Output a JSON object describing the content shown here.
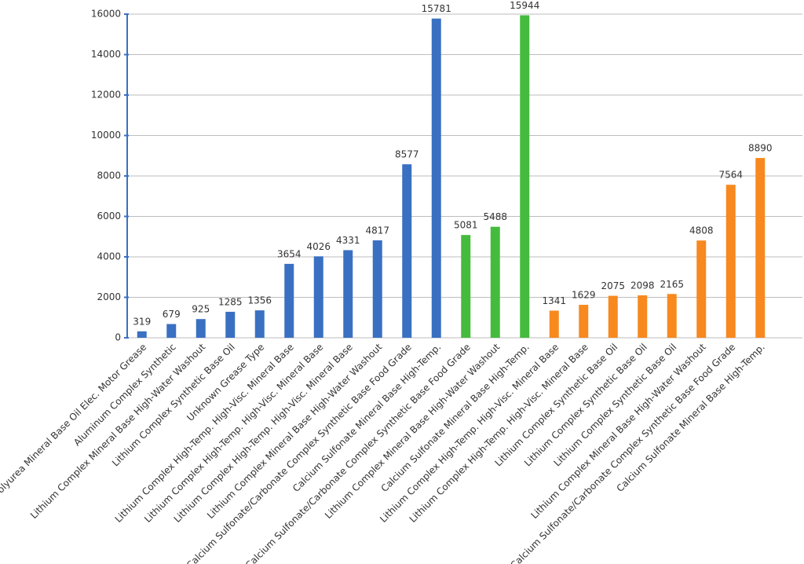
{
  "chart_data": {
    "type": "bar",
    "categories": [
      "Polyurea Mineral Base Oil Elec. Motor Grease",
      "Aluminum Complex Synthetic",
      "Lithium Complex Mineral Base High-Water Washout",
      "Lithium Complex Synthetic Base Oil",
      "Unknown Grease Type",
      "Lithium Complex High-Temp. High-Visc. Mineral Base",
      "Lithium Complex High-Temp. High-Visc. Mineral Base",
      "Lithium Complex High-Temp. High-Visc. Mineral Base",
      "Lithium Complex Mineral Base High-Water Washout",
      "Calcium Sulfonate/Carbonate Complex Synthetic Base Food Grade",
      "Calcium Sulfonate Mineral Base High-Temp.",
      "Calcium Sulfonate/Carbonate Complex Synthetic Base Food Grade",
      "Lithium Complex Mineral Base High-Water Washout",
      "Calcium Sulfonate Mineral Base High-Temp.",
      "Lithium Complex High-Temp. High-Visc. Mineral Base",
      "Lithium Complex High-Temp. High-Visc. Mineral Base",
      "Lithium Complex Synthetic Base Oil",
      "Lithium Complex Synthetic Base Oil",
      "Lithium Complex Synthetic Base Oil",
      "Lithium Complex Mineral Base High-Water Washout",
      "Calcium Sulfonate/Carbonate Complex Synthetic Base Food Grade",
      "Calcium Sulfonate Mineral Base High-Temp."
    ],
    "values": [
      319,
      679,
      925,
      1285,
      1356,
      3654,
      4026,
      4331,
      4817,
      8577,
      15781,
      5081,
      5488,
      15944,
      1341,
      1629,
      2075,
      2098,
      2165,
      4808,
      7564,
      8890
    ],
    "colors": [
      "#3a70c2",
      "#3a70c2",
      "#3a70c2",
      "#3a70c2",
      "#3a70c2",
      "#3a70c2",
      "#3a70c2",
      "#3a70c2",
      "#3a70c2",
      "#3a70c2",
      "#3a70c2",
      "#45bb3e",
      "#45bb3e",
      "#45bb3e",
      "#f7891f",
      "#f7891f",
      "#f7891f",
      "#f7891f",
      "#f7891f",
      "#f7891f",
      "#f7891f",
      "#f7891f"
    ],
    "ylim": [
      0,
      16000
    ],
    "yticks": [
      0,
      2000,
      4000,
      6000,
      8000,
      10000,
      12000,
      14000,
      16000
    ],
    "grid": true
  }
}
